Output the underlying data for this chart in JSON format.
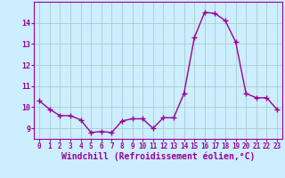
{
  "x": [
    0,
    1,
    2,
    3,
    4,
    5,
    6,
    7,
    8,
    9,
    10,
    11,
    12,
    13,
    14,
    15,
    16,
    17,
    18,
    19,
    20,
    21,
    22,
    23
  ],
  "y": [
    10.3,
    9.9,
    9.6,
    9.6,
    9.4,
    8.8,
    8.85,
    8.8,
    9.35,
    9.45,
    9.45,
    9.0,
    9.5,
    9.5,
    10.65,
    13.3,
    14.5,
    14.45,
    14.1,
    13.1,
    10.65,
    10.45,
    10.45,
    9.9
  ],
  "line_color": "#990099",
  "marker": "+",
  "markersize": 4,
  "linewidth": 1.0,
  "xlabel": "Windchill (Refroidissement éolien,°C)",
  "xlim": [
    -0.5,
    23.5
  ],
  "ylim": [
    8.5,
    15.0
  ],
  "yticks": [
    9,
    10,
    11,
    12,
    13,
    14
  ],
  "xticks": [
    0,
    1,
    2,
    3,
    4,
    5,
    6,
    7,
    8,
    9,
    10,
    11,
    12,
    13,
    14,
    15,
    16,
    17,
    18,
    19,
    20,
    21,
    22,
    23
  ],
  "bg_color": "#cceeff",
  "grid_color": "#aacccc",
  "tick_fontsize": 5.5,
  "xlabel_fontsize": 7.0,
  "tick_color": "#990099",
  "spine_color": "#990099"
}
